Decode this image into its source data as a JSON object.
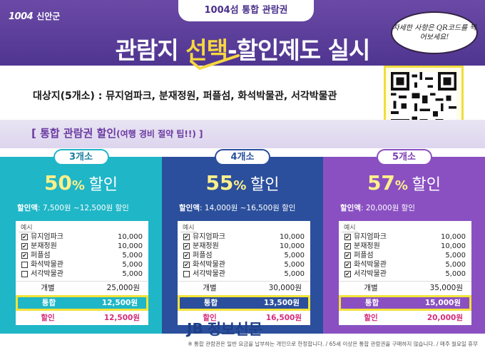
{
  "header": {
    "logo_number": "1004",
    "logo_name": "신안군",
    "tag": "1004섬 통합 관람권",
    "title_part1": "관람지 ",
    "title_highlight": "선택",
    "title_part2": "-할인제도 실시",
    "bubble": "자세한 사항은 QR코드를 찍어보세요!"
  },
  "subjects": "대상지(5개소) : 뮤지엄파크, 분재정원, 퍼플섬, 화석박물관, 서각박물관",
  "band": {
    "title": "[ 통합 관람권 할인",
    "title_small": "(여행 경비 절약 팁!!) ]"
  },
  "panels": [
    {
      "pill": "3개소",
      "percent": "50",
      "unit": "%",
      "discount_word": "할인",
      "range_label": "할인액",
      "range_value": ": 7,500원 ~12,500원 할인",
      "example_label": "예시",
      "items": [
        {
          "name": "뮤지엄파크",
          "price": "10,000",
          "checked": true
        },
        {
          "name": "분재정원",
          "price": "10,000",
          "checked": true
        },
        {
          "name": "퍼플섬",
          "price": "5,000",
          "checked": true
        },
        {
          "name": "화석박물관",
          "price": "5,000",
          "checked": false
        },
        {
          "name": "서각박물관",
          "price": "5,000",
          "checked": false
        }
      ],
      "individual_label": "개별",
      "individual_value": "25,000원",
      "combined_label": "통합",
      "combined_value": "12,500원",
      "discount_label": "할인",
      "discount_value": "12,500원"
    },
    {
      "pill": "4개소",
      "percent": "55",
      "unit": "%",
      "discount_word": "할인",
      "range_label": "할인액",
      "range_value": ": 14,000원 ~16,500원 할인",
      "example_label": "예시",
      "items": [
        {
          "name": "뮤지엄파크",
          "price": "10,000",
          "checked": true
        },
        {
          "name": "분재정원",
          "price": "10,000",
          "checked": true
        },
        {
          "name": "퍼플섬",
          "price": "5,000",
          "checked": true
        },
        {
          "name": "화석박물관",
          "price": "5,000",
          "checked": true
        },
        {
          "name": "서각박물관",
          "price": "5,000",
          "checked": false
        }
      ],
      "individual_label": "개별",
      "individual_value": "30,000원",
      "combined_label": "통합",
      "combined_value": "13,500원",
      "discount_label": "할인",
      "discount_value": "16,500원"
    },
    {
      "pill": "5개소",
      "percent": "57",
      "unit": "%",
      "discount_word": "할인",
      "range_label": "할인액",
      "range_value": ": 20,000원 할인",
      "example_label": "예시",
      "items": [
        {
          "name": "뮤지엄파크",
          "price": "10,000",
          "checked": true
        },
        {
          "name": "분재정원",
          "price": "10,000",
          "checked": true
        },
        {
          "name": "퍼플섬",
          "price": "5,000",
          "checked": true
        },
        {
          "name": "화석박물관",
          "price": "5,000",
          "checked": true
        },
        {
          "name": "서각박물관",
          "price": "5,000",
          "checked": true
        }
      ],
      "individual_label": "개별",
      "individual_value": "35,000원",
      "combined_label": "통합",
      "combined_value": "15,000원",
      "discount_label": "할인",
      "discount_value": "20,000원"
    }
  ],
  "footer": {
    "note": "※ 통합 관람권은 일반 요금을 납부하는 개인으로 한정합니다. / 65세 이상은 통합 관람권을 구매하지 않습니다. / 매주 월요일 휴무",
    "brand_mark": "JB",
    "brand_name": "정보신문"
  },
  "colors": {
    "header": "#5a3c98",
    "accent_yellow": "#f6d73f",
    "panel1": "#1fb6c7",
    "panel2": "#2b4f9c",
    "panel3": "#8a50c2",
    "discount_pink": "#d52a7b"
  },
  "icons": [
    "check-mark-icon",
    "qr-code-icon",
    "checkbox-icon"
  ]
}
